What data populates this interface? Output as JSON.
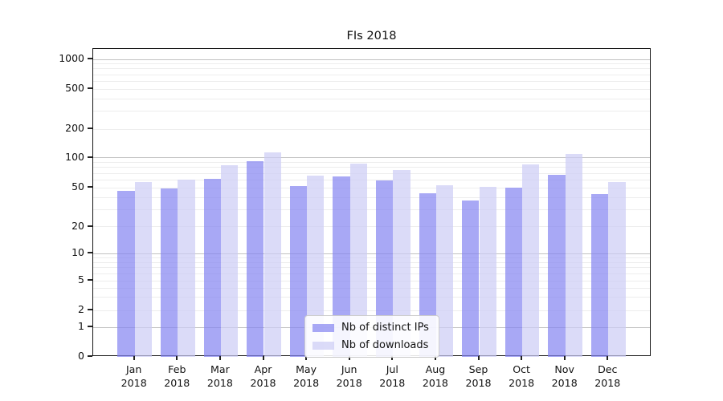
{
  "chart_data": {
    "type": "bar",
    "title": "FIs 2018",
    "categories": [
      "Jan 2018",
      "Feb 2018",
      "Mar 2018",
      "Apr 2018",
      "May 2018",
      "Jun 2018",
      "Jul 2018",
      "Aug 2018",
      "Sep 2018",
      "Oct 2018",
      "Nov 2018",
      "Dec 2018"
    ],
    "series": [
      {
        "name": "Nb of distinct IPs",
        "values": [
          47,
          49,
          62,
          92,
          52,
          65,
          59,
          44,
          37,
          50,
          67,
          43
        ],
        "color": "#8383f1",
        "opacity": 0.7
      },
      {
        "name": "Nb of downloads",
        "values": [
          57,
          60,
          84,
          113,
          66,
          87,
          76,
          53,
          51,
          86,
          110,
          57
        ],
        "color": "#ccccf5",
        "opacity": 0.7
      }
    ],
    "yticks": [
      0,
      1,
      2,
      5,
      10,
      20,
      50,
      100,
      200,
      500,
      1000
    ],
    "ylim": [
      0,
      1300
    ],
    "yscale": "symlog",
    "xlabel": "",
    "ylabel": "",
    "grid": true,
    "legend_position": "lower center",
    "colors": {
      "bar_ips_rendered": "#a8a8f5",
      "bar_downloads_rendered": "#dbdbf8",
      "major_grid": "#c2c2c2",
      "minor_grid": "#ededed",
      "axis": "#161616",
      "text": "#111111"
    }
  }
}
